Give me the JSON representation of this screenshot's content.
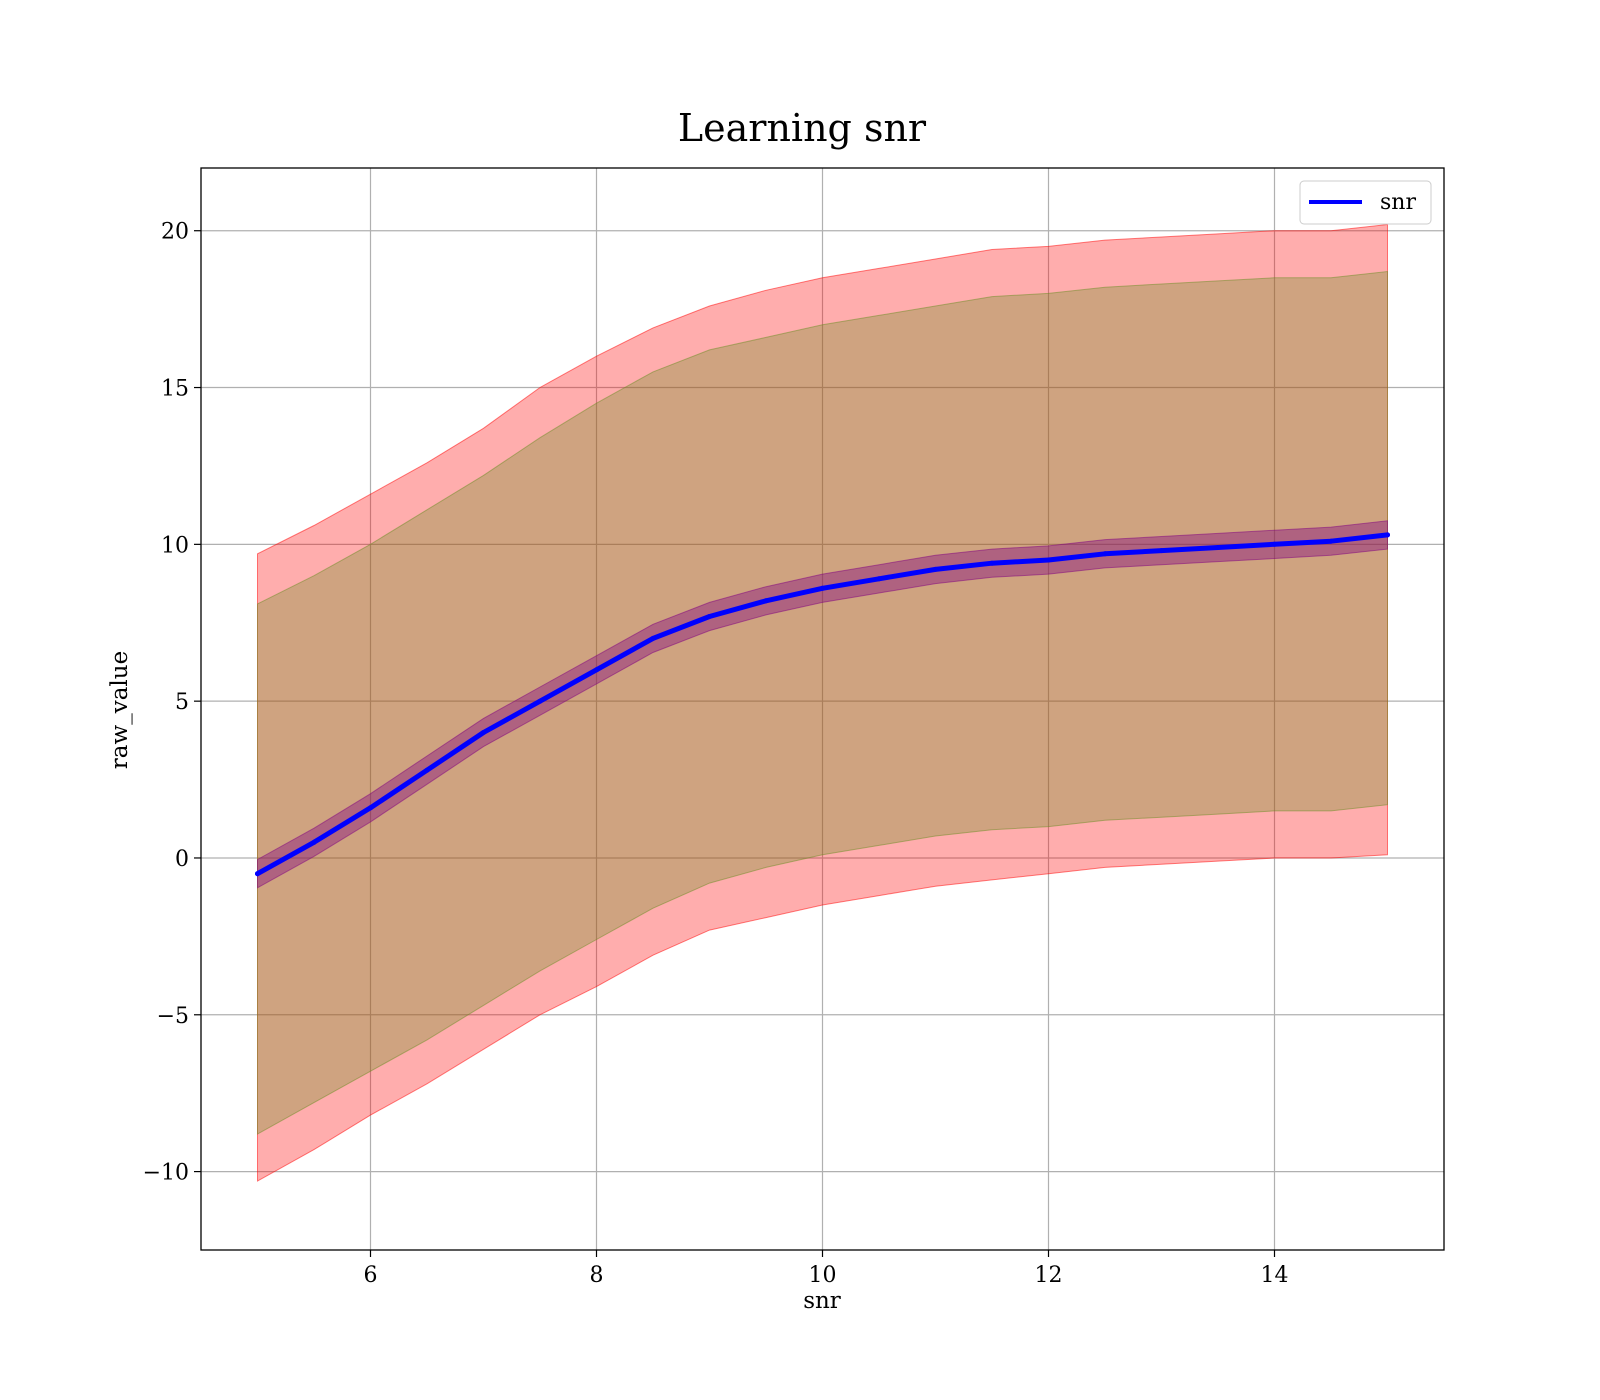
{
  "chart_data": {
    "type": "line",
    "title": "Learning snr",
    "xlabel": "snr",
    "ylabel": "raw_value",
    "xlim": [
      4.5,
      15.5
    ],
    "ylim": [
      -12.5,
      22
    ],
    "x_ticks": [
      6,
      8,
      10,
      12,
      14
    ],
    "x_tick_labels": [
      "6",
      "8",
      "10",
      "12",
      "14"
    ],
    "y_ticks": [
      -10,
      -5,
      0,
      5,
      10,
      15,
      20
    ],
    "y_tick_labels": [
      "−10",
      "−5",
      "0",
      "5",
      "10",
      "15",
      "20"
    ],
    "grid": true,
    "legend": {
      "position": "top-right",
      "entries": [
        "snr"
      ]
    },
    "x": [
      5,
      5.5,
      6,
      6.5,
      7,
      7.5,
      8,
      8.5,
      9,
      9.5,
      10,
      10.5,
      11,
      11.5,
      12,
      12.5,
      13,
      13.5,
      14,
      14.5,
      15
    ],
    "series": [
      {
        "name": "snr",
        "color": "#0000ff",
        "values": [
          -0.5,
          0.5,
          1.6,
          2.8,
          4.0,
          5.0,
          6.0,
          7.0,
          7.7,
          8.2,
          8.6,
          8.9,
          9.2,
          9.4,
          9.5,
          9.7,
          9.8,
          9.9,
          10.0,
          10.1,
          10.3
        ]
      }
    ],
    "bands": [
      {
        "color": "#ff0000",
        "opacity": 0.32,
        "lower": [
          -10.3,
          -9.3,
          -8.2,
          -7.2,
          -6.1,
          -5.0,
          -4.1,
          -3.1,
          -2.3,
          -1.9,
          -1.5,
          -1.2,
          -0.9,
          -0.7,
          -0.5,
          -0.3,
          -0.2,
          -0.1,
          0.0,
          0.0,
          0.1
        ],
        "upper": [
          9.7,
          10.6,
          11.6,
          12.6,
          13.7,
          15.0,
          16.0,
          16.9,
          17.6,
          18.1,
          18.5,
          18.8,
          19.1,
          19.4,
          19.5,
          19.7,
          19.8,
          19.9,
          20.0,
          20.0,
          20.2
        ]
      },
      {
        "color": "#6b8e23",
        "opacity": 0.32,
        "lower": [
          -8.8,
          -7.8,
          -6.8,
          -5.8,
          -4.7,
          -3.6,
          -2.6,
          -1.6,
          -0.8,
          -0.3,
          0.1,
          0.4,
          0.7,
          0.9,
          1.0,
          1.2,
          1.3,
          1.4,
          1.5,
          1.5,
          1.7
        ],
        "upper": [
          8.1,
          9.0,
          10.0,
          11.1,
          12.2,
          13.4,
          14.5,
          15.5,
          16.2,
          16.6,
          17.0,
          17.3,
          17.6,
          17.9,
          18.0,
          18.2,
          18.3,
          18.4,
          18.5,
          18.5,
          18.7
        ]
      },
      {
        "color": "#800080",
        "opacity": 0.4,
        "lower": [
          -0.95,
          0.05,
          1.15,
          2.35,
          3.55,
          4.55,
          5.55,
          6.55,
          7.25,
          7.75,
          8.15,
          8.45,
          8.75,
          8.95,
          9.05,
          9.25,
          9.35,
          9.45,
          9.55,
          9.65,
          9.85
        ],
        "upper": [
          -0.05,
          0.95,
          2.05,
          3.25,
          4.45,
          5.45,
          6.45,
          7.45,
          8.15,
          8.65,
          9.05,
          9.35,
          9.65,
          9.85,
          9.95,
          10.15,
          10.25,
          10.35,
          10.45,
          10.55,
          10.75
        ]
      }
    ]
  }
}
